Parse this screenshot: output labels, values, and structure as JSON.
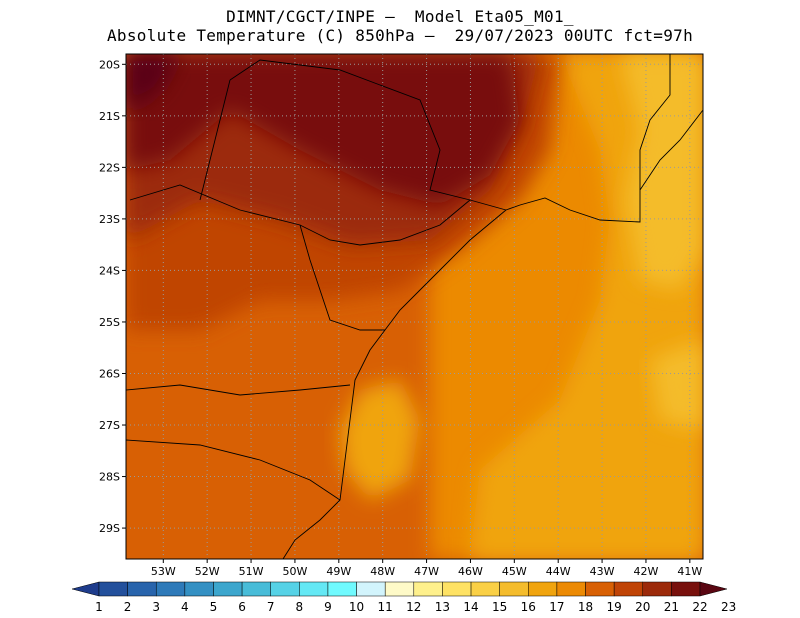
{
  "title": {
    "line1": "DIMNT/CGCT/INPE –  Model Eta05_M01_",
    "line2": "Absolute Temperature (C) 850hPa –  29/07/2023 00UTC fct=97h"
  },
  "map": {
    "lat_range": [
      -29.6,
      -19.8
    ],
    "lon_range": [
      -53.85,
      -40.7
    ],
    "lat_ticks": [
      {
        "value": -20,
        "label": "20S"
      },
      {
        "value": -21,
        "label": "21S"
      },
      {
        "value": -22,
        "label": "22S"
      },
      {
        "value": -23,
        "label": "23S"
      },
      {
        "value": -24,
        "label": "24S"
      },
      {
        "value": -25,
        "label": "25S"
      },
      {
        "value": -26,
        "label": "26S"
      },
      {
        "value": -27,
        "label": "27S"
      },
      {
        "value": -28,
        "label": "28S"
      },
      {
        "value": -29,
        "label": "29S"
      }
    ],
    "lon_ticks": [
      {
        "value": -53,
        "label": "53W"
      },
      {
        "value": -52,
        "label": "52W"
      },
      {
        "value": -51,
        "label": "51W"
      },
      {
        "value": -50,
        "label": "50W"
      },
      {
        "value": -49,
        "label": "49W"
      },
      {
        "value": -48,
        "label": "48W"
      },
      {
        "value": -47,
        "label": "47W"
      },
      {
        "value": -46,
        "label": "46W"
      },
      {
        "value": -45,
        "label": "45W"
      },
      {
        "value": -44,
        "label": "44W"
      },
      {
        "value": -43,
        "label": "43W"
      },
      {
        "value": -42,
        "label": "42W"
      },
      {
        "value": -41,
        "label": "41W"
      }
    ],
    "grid": "dotted"
  },
  "colorbar": {
    "labels": [
      "1",
      "2",
      "3",
      "4",
      "5",
      "6",
      "7",
      "8",
      "9",
      "10",
      "11",
      "12",
      "13",
      "14",
      "15",
      "16",
      "17",
      "18",
      "19",
      "20",
      "21",
      "22",
      "23"
    ],
    "colors": [
      "#1e3c8c",
      "#23509c",
      "#2864ac",
      "#2e7ab9",
      "#3490c3",
      "#3ca6cd",
      "#48bcd8",
      "#56d2e6",
      "#64e8f4",
      "#70fafe",
      "#d2f4fc",
      "#fefac8",
      "#fef08c",
      "#fee264",
      "#fad046",
      "#f4bc2c",
      "#f0a40e",
      "#ec8a04",
      "#d86004",
      "#c04406",
      "#9c2a0a",
      "#78100c",
      "#5a0612"
    ]
  },
  "chart_data": {
    "type": "heatmap",
    "variable": "Absolute Temperature (C) 850hPa",
    "valid": "29/07/2023 00UTC fct=97h",
    "colorbar_range": [
      1,
      23
    ],
    "regions": [
      {
        "lon": -53.6,
        "lat": -20.1,
        "value": 23
      },
      {
        "lon": -51.5,
        "lat": -21.0,
        "value": 22
      },
      {
        "lon": -47.5,
        "lat": -21.3,
        "value": 22
      },
      {
        "lon": -50.0,
        "lat": -22.5,
        "value": 21
      },
      {
        "lon": -52.5,
        "lat": -23.5,
        "value": 20
      },
      {
        "lon": -45.8,
        "lat": -20.5,
        "value": 19
      },
      {
        "lon": -49.0,
        "lat": -25.0,
        "value": 19
      },
      {
        "lon": -52.0,
        "lat": -27.0,
        "value": 19
      },
      {
        "lon": -47.5,
        "lat": -27.8,
        "value": 19
      },
      {
        "lon": -44.5,
        "lat": -25.5,
        "value": 18
      },
      {
        "lon": -48.2,
        "lat": -26.5,
        "value": 17
      },
      {
        "lon": -42.8,
        "lat": -23.0,
        "value": 18
      },
      {
        "lon": -43.0,
        "lat": -26.5,
        "value": 17
      },
      {
        "lon": -41.3,
        "lat": -20.5,
        "value": 16
      },
      {
        "lon": -41.0,
        "lat": -26.4,
        "value": 16
      },
      {
        "lon": -45.0,
        "lat": -27.6,
        "value": 17
      },
      {
        "lon": -45.0,
        "lat": -29.0,
        "value": 17
      }
    ]
  }
}
